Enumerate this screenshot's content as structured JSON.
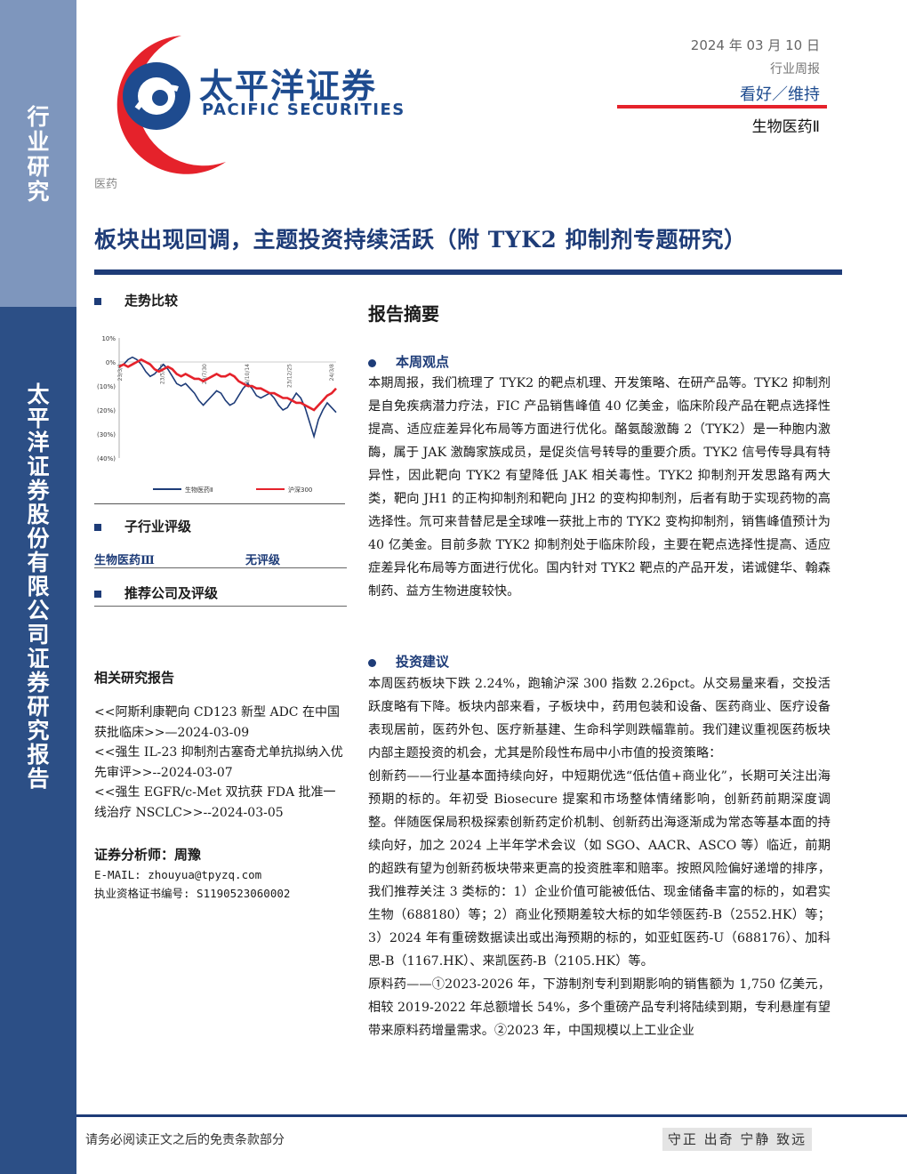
{
  "sidebar": {
    "top_chars": [
      "行",
      "业",
      "研",
      "究"
    ],
    "bottom_chars": [
      "太",
      "平",
      "洋",
      "证",
      "券",
      "股",
      "份",
      "有",
      "限",
      "公",
      "司",
      "证",
      "券",
      "研",
      "究",
      "报",
      "告"
    ]
  },
  "brand": {
    "cn": "太平洋证券",
    "en": "PACIFIC SECURITIES"
  },
  "header": {
    "date": "2024 年 03 月 10 日",
    "report_type": "行业周报",
    "rating": "看好／维持",
    "sector": "生物医药Ⅱ"
  },
  "category": "医药",
  "title": "板块出现回调，主题投资持续活跃（附 TYK2 抑制剂专题研究）",
  "left": {
    "trend_heading": "走势比较",
    "sub_heading": "子行业评级",
    "sub_name": "生物医药Ⅲ",
    "sub_rating": "无评级",
    "rec_heading": "推荐公司及评级",
    "related_heading": "相关研究报告",
    "related": [
      "<<阿斯利康靶向 CD123 新型 ADC 在中国获批临床>>—2024-03-09",
      "<<强生 IL-23 抑制剂古塞奇尤单抗拟纳入优先审评>>--2024-03-07",
      "<<强生 EGFR/c-Met 双抗获 FDA 批准一线治疗 NSCLC>>--2024-03-05"
    ],
    "analyst": "证券分析师：周豫",
    "email": "E-MAIL: zhouyua@tpyzq.com",
    "cert": "执业资格证书编号: S1190523060002"
  },
  "chart_data": {
    "type": "line",
    "ylim": [
      -40,
      10
    ],
    "yticks": [
      "10%",
      "0%",
      "(10%)",
      "(20%)",
      "(30%)",
      "(40%)"
    ],
    "xticks": [
      "23/3/8",
      "23/5/19",
      "23/7/30",
      "23/10/14",
      "23/12/25",
      "24/3/8"
    ],
    "series": [
      {
        "name": "生物医药Ⅱ",
        "color": "#1e3c78",
        "values": [
          -2,
          -1,
          1,
          2,
          1,
          -1,
          -4,
          -6,
          -5,
          -3,
          -1,
          -3,
          -6,
          -9,
          -10,
          -9,
          -11,
          -13,
          -16,
          -18,
          -16,
          -14,
          -12,
          -13,
          -16,
          -18,
          -17,
          -14,
          -11,
          -9,
          -11,
          -14,
          -15,
          -14,
          -13,
          -15,
          -18,
          -20,
          -19,
          -16,
          -13,
          -15,
          -19,
          -25,
          -31,
          -24,
          -20,
          -17,
          -19,
          -21
        ]
      },
      {
        "name": "沪深300",
        "color": "#e5222b",
        "values": [
          -2,
          -1,
          -2,
          -1,
          0,
          1,
          0,
          -1,
          -3,
          -4,
          -3,
          -2,
          -3,
          -5,
          -6,
          -5,
          -6,
          -7,
          -7,
          -8,
          -7,
          -6,
          -5,
          -6,
          -6,
          -5,
          -6,
          -8,
          -9,
          -10,
          -10,
          -11,
          -11,
          -12,
          -13,
          -13,
          -14,
          -15,
          -15,
          -16,
          -17,
          -17,
          -18,
          -19,
          -20,
          -18,
          -16,
          -14,
          -13,
          -11
        ]
      }
    ]
  },
  "summary": {
    "title": "报告摘要",
    "view_heading": "本周观点",
    "view_text": "本期周报，我们梳理了 TYK2 的靶点机理、开发策略、在研产品等。TYK2 抑制剂是自免疾病潜力疗法，FIC 产品销售峰值 40 亿美金，临床阶段产品在靶点选择性提高、适应症差异化布局等方面进行优化。酪氨酸激酶 2（TYK2）是一种胞内激酶，属于 JAK 激酶家族成员，是促炎信号转导的重要介质。TYK2 信号传导具有特异性，因此靶向 TYK2 有望降低 JAK 相关毒性。TYK2 抑制剂开发思路有两大类，靶向 JH1 的正构抑制剂和靶向 JH2 的变构抑制剂，后者有助于实现药物的高选择性。氘可来昔替尼是全球唯一获批上市的 TYK2 变构抑制剂，销售峰值预计为 40 亿美金。目前多款 TYK2 抑制剂处于临床阶段，主要在靶点选择性提高、适应症差异化布局等方面进行优化。国内针对 TYK2 靶点的产品开发，诺诚健华、翰森制药、益方生物进度较快。",
    "invest_heading": "投资建议",
    "invest_p1": "本周医药板块下跌 2.24%，跑输沪深 300 指数 2.26pct。从交易量来看，交投活跃度略有下降。板块内部来看，子板块中，药用包装和设备、医药商业、医疗设备表现居前，医药外包、医疗新基建、生命科学则跌幅靠前。我们建议重视医药板块内部主题投资的机会，尤其是阶段性布局中小市值的投资策略：",
    "invest_p2": "创新药——行业基本面持续向好，中短期优选“低估值+商业化”，长期可关注出海预期的标的。年初受 Biosecure 提案和市场整体情绪影响，创新药前期深度调整。伴随医保局积极探索创新药定价机制、创新药出海逐渐成为常态等基本面的持续向好，加之 2024 上半年学术会议（如 SGO、AACR、ASCO 等）临近，前期的超跌有望为创新药板块带来更高的投资胜率和赔率。按照风险偏好递增的排序，我们推荐关注 3 类标的：1）企业价值可能被低估、现金储备丰富的标的，如君实生物（688180）等；2）商业化预期差较大标的如华领医药-B（2552.HK）等；3）2024 年有重磅数据读出或出海预期的标的，如亚虹医药-U（688176）、加科思-B（1167.HK）、来凯医药-B（2105.HK）等。",
    "invest_p3": "原料药——①2023-2026 年，下游制剂专利到期影响的销售额为 1,750 亿美元，相较 2019-2022 年总额增长 54%，多个重磅产品专利将陆续到期，专利悬崖有望带来原料药增量需求。②2023 年，中国规模以上工业企业"
  },
  "footer": {
    "disclaimer": "请务必阅读正文之后的免责条款部分",
    "motto": "守正 出奇 宁静 致远"
  }
}
